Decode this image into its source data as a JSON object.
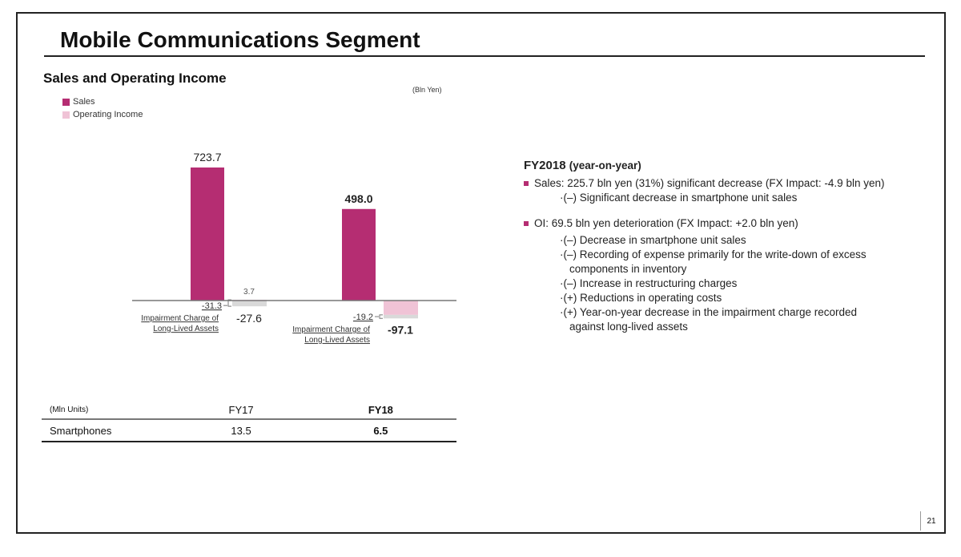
{
  "slide": {
    "title": "Mobile Communications Segment",
    "page_number": "21"
  },
  "chart_data": {
    "type": "bar",
    "title": "Sales and Operating Income",
    "unit": "(Bln Yen)",
    "categories": [
      "FY17",
      "FY18"
    ],
    "legend": [
      "Sales",
      "Operating Income"
    ],
    "legend_position": "top-left",
    "series": [
      {
        "name": "Sales",
        "values": [
          723.7,
          498.0
        ],
        "labels": [
          "723.7",
          "498.0"
        ],
        "color": "#b52d72"
      },
      {
        "name": "Operating Income",
        "values": [
          -27.6,
          -97.1
        ],
        "labels": [
          "-27.6",
          "-97.1"
        ],
        "color": "#f0c3d6"
      }
    ],
    "oi_positive_part": {
      "FY17": "3.7"
    },
    "impairment": {
      "values": [
        -31.3,
        -19.2
      ],
      "labels": [
        "-31.3",
        "-19.2"
      ],
      "label_text": [
        "Impairment Charge of",
        "Long-Lived Assets"
      ],
      "color": "#d9d9d9"
    },
    "grid": false
  },
  "table": {
    "unit": "(Mln Units)",
    "columns": [
      "FY17",
      "FY18"
    ],
    "rows": [
      {
        "label": "Smartphones",
        "values": [
          "13.5",
          "6.5"
        ]
      }
    ]
  },
  "summary": {
    "heading": "FY2018",
    "heading_note": "(year-on-year)",
    "sales": "Sales:  225.7 bln yen (31%) significant decrease (FX Impact: -4.9 bln yen)",
    "sales_items": [
      "·(–) Significant decrease in smartphone unit sales"
    ],
    "oi": "OI: 69.5 bln yen deterioration (FX Impact: +2.0 bln yen)",
    "oi_items": [
      "·(–) Decrease in smartphone unit sales",
      "·(–) Recording of expense primarily for the write-down of excess components in inventory",
      "·(–) Increase in restructuring charges",
      "·(+) Reductions in operating costs",
      "·(+) Year-on-year decrease in the impairment charge recorded against long-lived assets"
    ],
    "bullet_color": "#b52d72"
  }
}
